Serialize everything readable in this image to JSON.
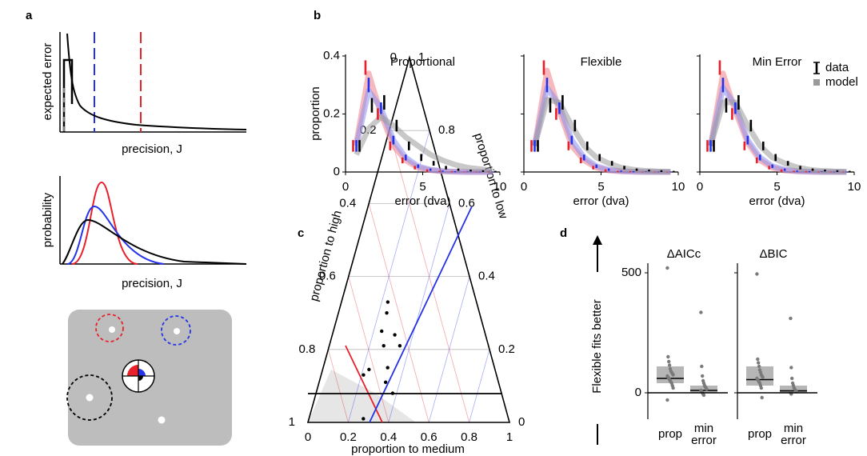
{
  "panel_labels": {
    "a": "a",
    "b": "b",
    "c": "c",
    "d": "d"
  },
  "panel_a": {
    "top": {
      "ylabel": "expected error",
      "xlabel": "precision, J"
    },
    "middle": {
      "ylabel": "probability",
      "xlabel": "precision, J"
    }
  },
  "panel_b": {
    "type": "errorbar",
    "x": [
      0.7,
      1.5,
      2.3,
      3.1,
      3.9,
      4.7,
      5.5,
      6.3,
      7.1,
      7.9,
      8.7,
      9.5
    ],
    "xlim": [
      0,
      10
    ],
    "xticks": [
      0,
      5,
      10
    ],
    "ylim": [
      0,
      0.4
    ],
    "yticks": [
      0,
      0.2,
      0.4
    ],
    "xlabel": "error (dva)",
    "ylabel": "proportion",
    "legend": [
      "data",
      "model"
    ],
    "model_color": "#9a9a9a",
    "data": [
      {
        "color": "#e8202a",
        "values": [
          0.09,
          0.36,
          0.2,
          0.09,
          0.04,
          0.015,
          0.005,
          0.002,
          0.001,
          0,
          0,
          0
        ],
        "errors": [
          0.02,
          0.025,
          0.02,
          0.015,
          0.01,
          0.006,
          0.004,
          0.002,
          0.002,
          0.001,
          0.001,
          0.001
        ]
      },
      {
        "color": "#2433e8",
        "values": [
          0.09,
          0.3,
          0.22,
          0.11,
          0.05,
          0.02,
          0.008,
          0.003,
          0.001,
          0.001,
          0,
          0
        ],
        "errors": [
          0.02,
          0.025,
          0.02,
          0.015,
          0.01,
          0.006,
          0.004,
          0.002,
          0.002,
          0.001,
          0.001,
          0.001
        ]
      },
      {
        "color": "#000000",
        "values": [
          0.09,
          0.23,
          0.24,
          0.16,
          0.09,
          0.05,
          0.03,
          0.015,
          0.008,
          0.005,
          0.003,
          0.002
        ],
        "errors": [
          0.02,
          0.025,
          0.025,
          0.02,
          0.015,
          0.012,
          0.008,
          0.006,
          0.004,
          0.003,
          0.003,
          0.002
        ]
      }
    ],
    "subplots": [
      {
        "title": "Proportional",
        "model": [
          {
            "color": "#f07f86",
            "values": [
              0.1,
              0.34,
              0.2,
              0.09,
              0.04,
              0.015,
              0.006,
              0.002,
              0.001,
              0,
              0,
              0
            ]
          },
          {
            "color": "#8a90f0",
            "values": [
              0.09,
              0.28,
              0.22,
              0.11,
              0.05,
              0.02,
              0.008,
              0.003,
              0.001,
              0,
              0,
              0
            ]
          },
          {
            "color": "#9a9a9a",
            "values": [
              0.06,
              0.15,
              0.19,
              0.16,
              0.12,
              0.09,
              0.06,
              0.04,
              0.025,
              0.015,
              0.01,
              0.005
            ]
          }
        ]
      },
      {
        "title": "Flexible",
        "model": [
          {
            "color": "#f07f86",
            "values": [
              0.09,
              0.35,
              0.21,
              0.09,
              0.04,
              0.015,
              0.005,
              0.002,
              0.001,
              0,
              0,
              0
            ]
          },
          {
            "color": "#8a90f0",
            "values": [
              0.09,
              0.29,
              0.23,
              0.11,
              0.05,
              0.02,
              0.008,
              0.003,
              0.001,
              0,
              0,
              0
            ]
          },
          {
            "color": "#9a9a9a",
            "values": [
              0.09,
              0.25,
              0.24,
              0.16,
              0.09,
              0.05,
              0.03,
              0.015,
              0.008,
              0.004,
              0.002,
              0.001
            ]
          }
        ]
      },
      {
        "title": "Min Error",
        "model": [
          {
            "color": "#f07f86",
            "values": [
              0.09,
              0.34,
              0.21,
              0.1,
              0.04,
              0.015,
              0.005,
              0.002,
              0.001,
              0,
              0,
              0
            ]
          },
          {
            "color": "#8a90f0",
            "values": [
              0.09,
              0.29,
              0.23,
              0.11,
              0.05,
              0.02,
              0.008,
              0.003,
              0.001,
              0,
              0,
              0
            ]
          },
          {
            "color": "#9a9a9a",
            "values": [
              0.09,
              0.24,
              0.24,
              0.16,
              0.09,
              0.05,
              0.03,
              0.016,
              0.008,
              0.004,
              0.002,
              0.001
            ]
          }
        ]
      }
    ]
  },
  "panel_c": {
    "type": "ternary",
    "high_label": "proportion to high",
    "medium_label": "proportion to medium",
    "low_label": "proportion to low",
    "high_ticks": [
      0,
      0.2,
      0.4,
      0.6,
      0.8,
      1
    ],
    "medium_ticks": [
      0,
      0.2,
      0.4,
      0.6,
      0.8,
      1
    ],
    "low_ticks": [
      0,
      0.2,
      0.4,
      0.6,
      0.8,
      1
    ],
    "high_color": "#e8202a",
    "medium_color": "#2433e8",
    "low_color": "#000000",
    "points": {
      "medium": [
        0.23,
        0.24,
        0.24,
        0.31,
        0.27,
        0.35,
        0.23,
        0.21,
        0.32,
        0.33,
        0.38,
        0.27
      ],
      "low": [
        0.33,
        0.3,
        0.25,
        0.24,
        0.21,
        0.21,
        0.145,
        0.13,
        0.15,
        0.11,
        0.08,
        0.01
      ]
    }
  },
  "panel_d": {
    "type": "box",
    "ylabel": "Flexible fits better",
    "ylim": [
      -110,
      540
    ],
    "yticks": [
      0,
      500
    ],
    "categories": [
      "prop",
      "min error"
    ],
    "subplots": [
      {
        "title": "ΔAICc",
        "boxes": [
          {
            "q1": 40,
            "median": 60,
            "q3": 110,
            "points": [
              520,
              150,
              130,
              115,
              100,
              90,
              85,
              80,
              75,
              70,
              65,
              60,
              55,
              50,
              45,
              40,
              30,
              20,
              -30
            ]
          },
          {
            "q1": 0,
            "median": 10,
            "q3": 30,
            "points": [
              335,
              110,
              70,
              50,
              40,
              30,
              25,
              20,
              15,
              10,
              5,
              0,
              -5,
              -10
            ]
          }
        ]
      },
      {
        "title": "ΔBIC",
        "boxes": [
          {
            "q1": 30,
            "median": 55,
            "q3": 110,
            "points": [
              495,
              140,
              125,
              110,
              95,
              85,
              75,
              70,
              65,
              60,
              55,
              50,
              45,
              40,
              30,
              20,
              -20
            ]
          },
          {
            "q1": 0,
            "median": 8,
            "q3": 30,
            "points": [
              310,
              105,
              60,
              40,
              30,
              20,
              15,
              10,
              5,
              0,
              -5
            ]
          }
        ]
      }
    ]
  }
}
